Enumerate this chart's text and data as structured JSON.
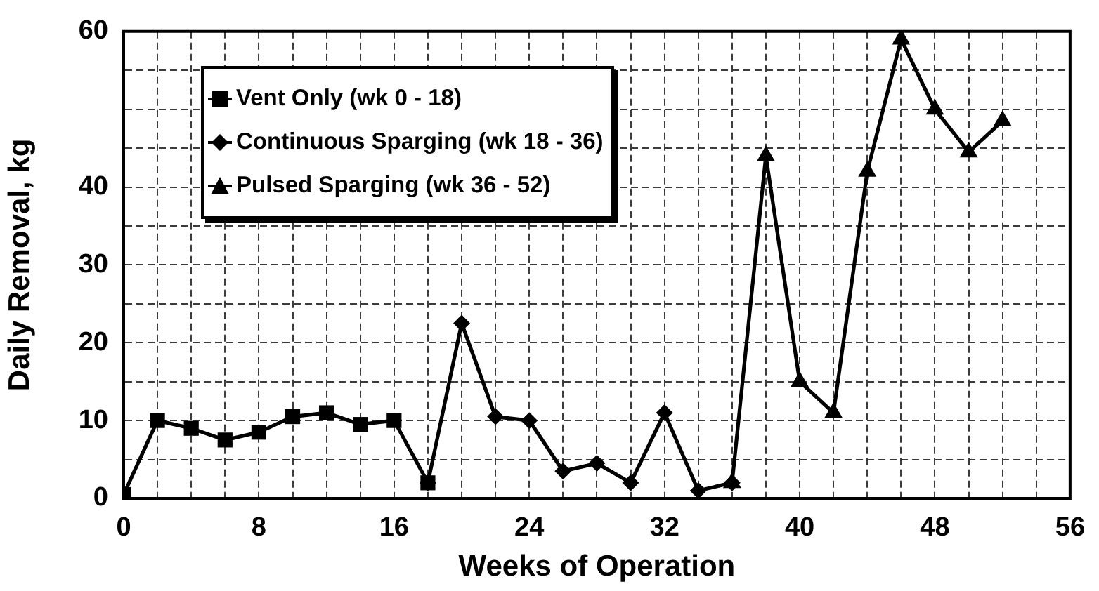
{
  "chart_data": {
    "type": "line",
    "xlabel": "Weeks of Operation",
    "ylabel": "Daily Removal, kg",
    "xlim": [
      0,
      56
    ],
    "xticks": [
      0,
      {
        "value": 2,
        "label": null
      },
      {
        "value": 4,
        "label": null
      },
      {
        "value": 6,
        "label": null
      },
      8,
      {
        "value": 10,
        "label": null
      },
      {
        "value": 12,
        "label": null
      },
      {
        "value": 14,
        "label": null
      },
      16,
      {
        "value": 18,
        "label": null
      },
      {
        "value": 20,
        "label": null
      },
      {
        "value": 22,
        "label": null
      },
      24,
      {
        "value": 26,
        "label": null
      },
      {
        "value": 28,
        "label": null
      },
      {
        "value": 30,
        "label": null
      },
      32,
      {
        "value": 34,
        "label": null
      },
      {
        "value": 36,
        "label": null
      },
      {
        "value": 38,
        "label": null
      },
      40,
      {
        "value": 42,
        "label": null
      },
      {
        "value": 44,
        "label": null
      },
      {
        "value": 46,
        "label": null
      },
      48,
      {
        "value": 50,
        "label": null
      },
      {
        "value": 52,
        "label": null
      },
      {
        "value": 54,
        "label": null
      },
      56
    ],
    "ylim": [
      0,
      60
    ],
    "yticks": [
      0,
      {
        "value": 5,
        "label": null
      },
      10,
      {
        "value": 15,
        "label": null
      },
      20,
      {
        "value": 25,
        "label": null
      },
      30,
      {
        "value": 35,
        "label": null
      },
      40,
      {
        "value": 45,
        "label": null
      },
      {
        "value": 50,
        "label": null
      },
      {
        "value": 55,
        "label": null
      },
      60
    ],
    "grid": true,
    "legend": "top left",
    "line_style": "solid",
    "series": [
      {
        "name": "Vent Only (wk 0 - 18)",
        "color": "#000000",
        "marker": "square",
        "x": [
          0,
          2,
          4,
          6,
          8,
          10,
          12,
          14,
          16,
          18
        ],
        "values": [
          0.5,
          10,
          9,
          7.5,
          8.5,
          10.5,
          11,
          9.5,
          10,
          2
        ]
      },
      {
        "name": "Continuous Sparging (wk 18 - 36)",
        "color": "#000000",
        "marker": "diamond",
        "x": [
          18,
          20,
          22,
          24,
          26,
          28,
          30,
          32,
          34,
          36
        ],
        "values": [
          2,
          22.5,
          10.5,
          10,
          3.5,
          4.5,
          2,
          11,
          1,
          2
        ]
      },
      {
        "name": "Pulsed Sparging (wk 36 - 52)",
        "color": "#000000",
        "marker": "triangle",
        "x": [
          36,
          38,
          40,
          42,
          44,
          46,
          48,
          50,
          52
        ],
        "values": [
          2,
          44,
          15,
          11,
          42,
          59,
          50,
          44.5,
          48.5
        ]
      }
    ]
  }
}
